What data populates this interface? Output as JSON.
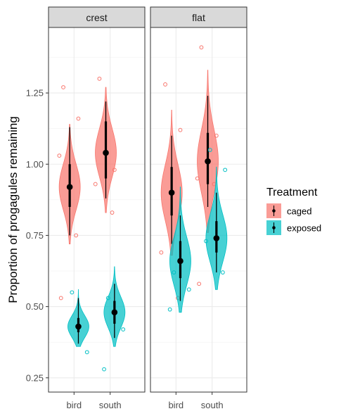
{
  "chart_data": {
    "type": "violin",
    "ylabel": "Proportion of progagules remaining",
    "xlabel": "",
    "ylim": [
      0.2,
      1.48
    ],
    "yticks": [
      0.25,
      0.5,
      0.75,
      1.0,
      1.25
    ],
    "ytick_labels": [
      "0.25",
      "0.50",
      "0.75",
      "1.00",
      "1.25"
    ],
    "grid": true,
    "legend": {
      "title": "Treatment",
      "position": "right",
      "entries": [
        {
          "label": "caged",
          "fill": "#F8766D"
        },
        {
          "label": "exposed",
          "fill": "#00BFC4"
        }
      ]
    },
    "categories": [
      "bird",
      "south"
    ],
    "facets": [
      {
        "label": "crest",
        "groups": [
          {
            "category": "bird",
            "treatment": "caged",
            "mean": 0.92,
            "ci_inner": [
              0.85,
              1.0
            ],
            "ci_outer": [
              0.75,
              1.13
            ],
            "violin_range": [
              0.72,
              1.14
            ],
            "points": [
              1.27,
              1.16,
              1.03,
              0.75,
              0.53
            ]
          },
          {
            "category": "bird",
            "treatment": "exposed",
            "mean": 0.43,
            "ci_inner": [
              0.41,
              0.46
            ],
            "ci_outer": [
              0.37,
              0.53
            ],
            "violin_range": [
              0.36,
              0.56
            ],
            "points": [
              0.55,
              0.34
            ]
          },
          {
            "category": "south",
            "treatment": "caged",
            "mean": 1.04,
            "ci_inner": [
              0.95,
              1.15
            ],
            "ci_outer": [
              0.88,
              1.22
            ],
            "violin_range": [
              0.83,
              1.27
            ],
            "points": [
              1.3,
              0.98,
              0.93,
              0.83
            ]
          },
          {
            "category": "south",
            "treatment": "exposed",
            "mean": 0.48,
            "ci_inner": [
              0.44,
              0.52
            ],
            "ci_outer": [
              0.39,
              0.58
            ],
            "violin_range": [
              0.36,
              0.64
            ],
            "points": [
              0.53,
              0.42,
              0.28
            ]
          }
        ]
      },
      {
        "label": "flat",
        "groups": [
          {
            "category": "bird",
            "treatment": "caged",
            "mean": 0.9,
            "ci_inner": [
              0.82,
              0.99
            ],
            "ci_outer": [
              0.72,
              1.1
            ],
            "violin_range": [
              0.68,
              1.19
            ],
            "points": [
              1.28,
              1.12,
              0.69,
              0.53
            ]
          },
          {
            "category": "bird",
            "treatment": "exposed",
            "mean": 0.66,
            "ci_inner": [
              0.6,
              0.73
            ],
            "ci_outer": [
              0.52,
              0.82
            ],
            "violin_range": [
              0.48,
              0.92
            ],
            "points": [
              0.62,
              0.56,
              0.49
            ]
          },
          {
            "category": "south",
            "treatment": "caged",
            "mean": 1.01,
            "ci_inner": [
              0.93,
              1.11
            ],
            "ci_outer": [
              0.85,
              1.24
            ],
            "violin_range": [
              0.76,
              1.33
            ],
            "points": [
              1.41,
              1.1,
              0.95,
              0.93,
              0.58
            ]
          },
          {
            "category": "south",
            "treatment": "exposed",
            "mean": 0.74,
            "ci_inner": [
              0.69,
              0.8
            ],
            "ci_outer": [
              0.62,
              0.9
            ],
            "violin_range": [
              0.56,
              0.99
            ],
            "points": [
              1.05,
              0.98,
              0.73,
              0.62
            ]
          }
        ]
      }
    ]
  }
}
